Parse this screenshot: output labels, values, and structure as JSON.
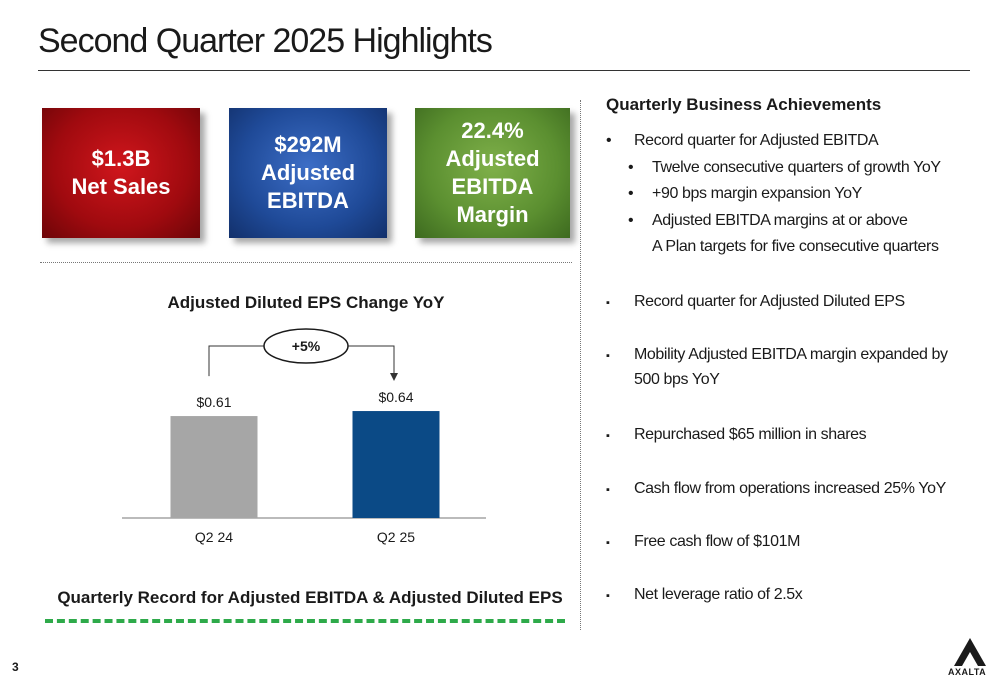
{
  "slide": {
    "title": "Second Quarter 2025 Highlights",
    "page_number": "3",
    "logo_text": "AXALTA"
  },
  "kpis": [
    {
      "line1": "$1.3B",
      "line2": "Net Sales",
      "line3": "",
      "color": "#b0101a"
    },
    {
      "line1": "$292M",
      "line2": "Adjusted",
      "line3": "EBITDA",
      "color": "#2a57a8"
    },
    {
      "line1": "22.4%",
      "line2": "Adjusted",
      "line3": "EBITDA Margin",
      "color": "#6a9e3c"
    }
  ],
  "chart_data": {
    "type": "bar",
    "title": "Adjusted Diluted EPS Change YoY",
    "categories": [
      "Q2 24",
      "Q2 25"
    ],
    "values": [
      0.61,
      0.64
    ],
    "data_labels": [
      "$0.61",
      "$0.64"
    ],
    "colors": [
      "#a6a6a6",
      "#0b4a86"
    ],
    "annotation": "+5%",
    "ylim": [
      0,
      0.64
    ],
    "grid": false
  },
  "footer": {
    "headline": "Quarterly Record for Adjusted EBITDA & Adjusted Diluted EPS"
  },
  "achievements": {
    "title": "Quarterly Business Achievements",
    "items": [
      {
        "text": "Record quarter for Adjusted EBITDA"
      },
      {
        "text": "Twelve consecutive quarters of growth YoY"
      },
      {
        "text": "+90 bps margin expansion YoY"
      },
      {
        "text": "Adjusted EBITDA margins at or above"
      },
      {
        "text": "A Plan targets for five consecutive quarters"
      },
      {
        "text": "Record quarter for Adjusted Diluted EPS"
      },
      {
        "text": "Mobility Adjusted EBITDA margin expanded by"
      },
      {
        "text": "500  bps YoY"
      },
      {
        "text": "Repurchased $65 million in shares"
      },
      {
        "text": "Cash flow from operations increased 25% YoY"
      },
      {
        "text": "Free cash flow of $101M"
      },
      {
        "text": "Net leverage ratio of 2.5x"
      }
    ]
  }
}
